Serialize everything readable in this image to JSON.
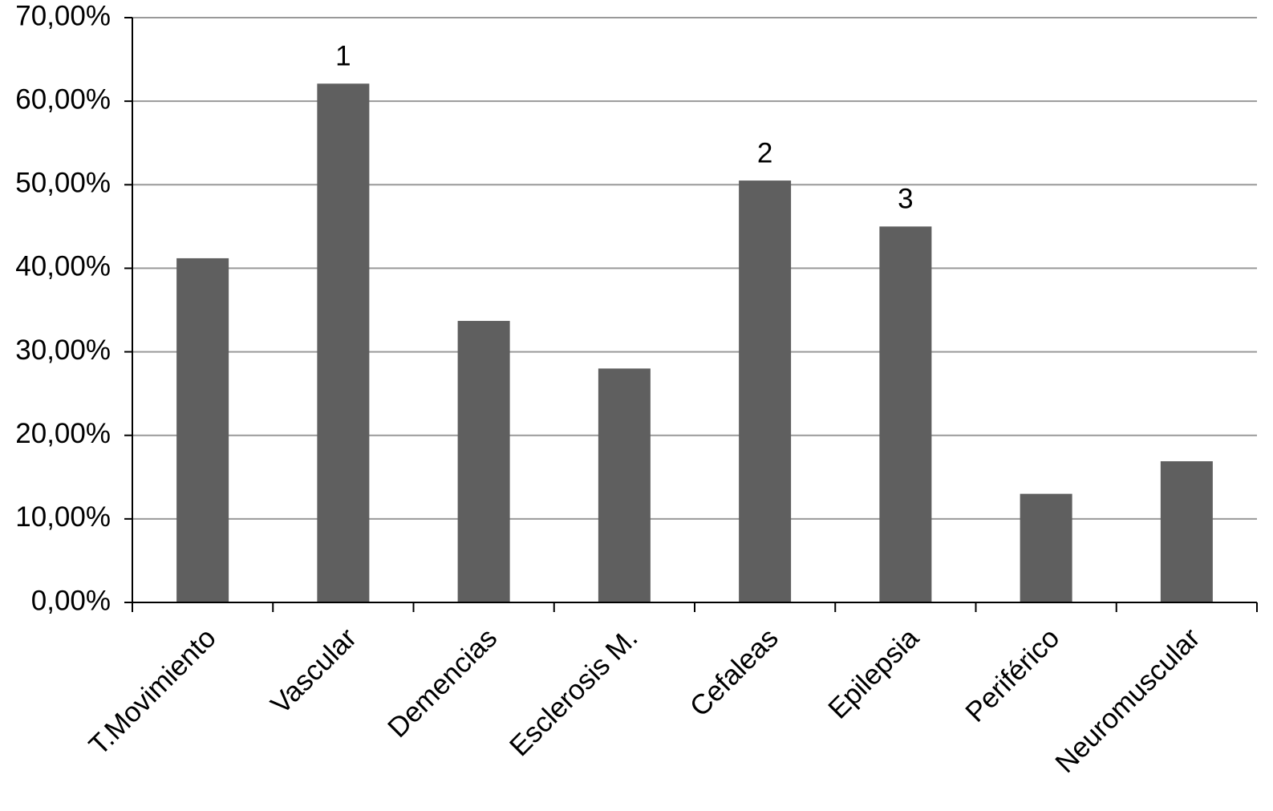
{
  "chart_data": {
    "type": "bar",
    "categories": [
      "T.Movimiento",
      "Vascular",
      "Demencias",
      "Esclerosis M.",
      "Cefaleas",
      "Epilepsia",
      "Periférico",
      "Neuromuscular"
    ],
    "values": [
      41.2,
      62.1,
      33.7,
      28.0,
      50.5,
      45.0,
      13.0,
      16.9
    ],
    "color": "#5f5f5f",
    "ylim": [
      0,
      70
    ],
    "yticks": [
      {
        "value": 0,
        "label": "0,00%"
      },
      {
        "value": 10,
        "label": "10,00%"
      },
      {
        "value": 20,
        "label": "20,00%"
      },
      {
        "value": 30,
        "label": "30,00%"
      },
      {
        "value": 40,
        "label": "40,00%"
      },
      {
        "value": 50,
        "label": "50,00%"
      },
      {
        "value": 60,
        "label": "60,00%"
      },
      {
        "value": 70,
        "label": "70,00%"
      }
    ],
    "grid": true,
    "annotations": [
      {
        "text": "1",
        "category": "Vascular"
      },
      {
        "text": "2",
        "category": "Cefaleas"
      },
      {
        "text": "3",
        "category": "Epilepsia"
      }
    ]
  }
}
